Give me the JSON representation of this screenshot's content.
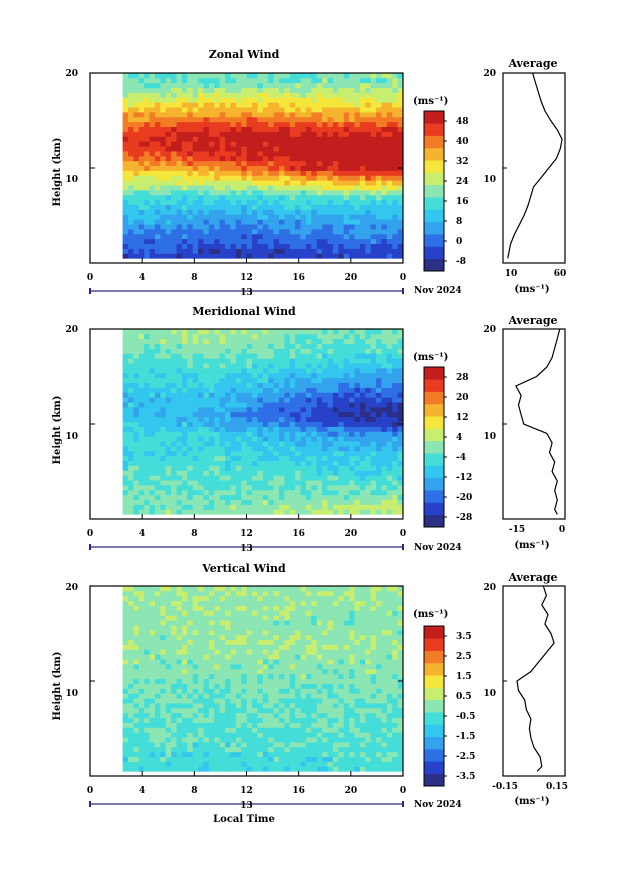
{
  "x_axis": {
    "label": "Local Time",
    "ticks": [
      "0",
      "4",
      "8",
      "12",
      "16",
      "20",
      "0"
    ],
    "date_marker": "13",
    "month_year": "Nov 2024",
    "range_hours": [
      0,
      24
    ]
  },
  "panels": [
    {
      "title": "Zonal Wind",
      "ylabel": "Height (km)",
      "yticks": [
        "20",
        "10"
      ],
      "colorbar_unit": "(ms⁻¹)",
      "colorbar_ticks": [
        "48",
        "40",
        "32",
        "24",
        "16",
        "8",
        "0",
        "-8"
      ],
      "colorbar_range": [
        -12,
        52
      ],
      "avg_title": "Average",
      "avg_xticks": [
        "10",
        "60"
      ],
      "avg_xunit": "(ms⁻¹)"
    },
    {
      "title": "Meridional Wind",
      "ylabel": "Height (km)",
      "yticks": [
        "20",
        "10"
      ],
      "colorbar_unit": "(ms⁻¹)",
      "colorbar_ticks": [
        "28",
        "20",
        "12",
        "4",
        "-4",
        "-12",
        "-20",
        "-28"
      ],
      "colorbar_range": [
        -32,
        32
      ],
      "avg_title": "Average",
      "avg_xticks": [
        "-15",
        "0"
      ],
      "avg_xunit": "(ms⁻¹)"
    },
    {
      "title": "Vertical Wind",
      "ylabel": "Height (km)",
      "yticks": [
        "20",
        "10"
      ],
      "colorbar_unit": "(ms⁻¹)",
      "colorbar_ticks": [
        "3.5",
        "2.5",
        "1.5",
        "0.5",
        "-0.5",
        "-1.5",
        "-2.5",
        "-3.5"
      ],
      "colorbar_range": [
        -4,
        4
      ],
      "avg_title": "Average",
      "avg_xticks": [
        "-0.15",
        "0.15"
      ],
      "avg_xunit": "(ms⁻¹)"
    }
  ],
  "chart_data": [
    {
      "type": "heatmap",
      "title": "Zonal Wind",
      "xlabel": "Local Time",
      "ylabel": "Height (km)",
      "xlim": [
        0,
        24
      ],
      "ylim": [
        0,
        20
      ],
      "data_start_hour": 2.5,
      "unit": "ms-1",
      "profile_height_km": [
        1,
        3,
        5,
        7,
        9,
        10,
        11,
        12,
        13,
        14,
        15,
        16,
        17,
        18,
        19
      ],
      "profile_by_hour": [
        {
          "hour": 3,
          "values": [
            -4,
            2,
            8,
            16,
            28,
            34,
            40,
            44,
            46,
            44,
            38,
            34,
            28,
            22,
            18
          ]
        },
        {
          "hour": 10,
          "values": [
            -6,
            0,
            6,
            14,
            30,
            38,
            44,
            48,
            50,
            48,
            42,
            36,
            30,
            24,
            18
          ]
        },
        {
          "hour": 20,
          "values": [
            -4,
            2,
            8,
            16,
            40,
            50,
            52,
            52,
            50,
            46,
            40,
            34,
            28,
            24,
            20
          ]
        }
      ],
      "average_profile": {
        "xlim": [
          0,
          65
        ],
        "height_km": [
          0.5,
          1,
          2,
          3,
          4,
          5,
          6,
          7,
          8,
          9,
          10,
          11,
          12,
          13,
          14,
          15,
          16,
          17,
          18,
          19,
          20
        ],
        "values": [
          5,
          6,
          8,
          12,
          17,
          22,
          26,
          29,
          32,
          40,
          48,
          56,
          60,
          62,
          57,
          50,
          44,
          40,
          37,
          34,
          31
        ]
      }
    },
    {
      "type": "heatmap",
      "title": "Meridional Wind",
      "xlabel": "Local Time",
      "ylabel": "Height (km)",
      "xlim": [
        0,
        24
      ],
      "ylim": [
        0,
        20
      ],
      "data_start_hour": 2.5,
      "unit": "ms-1",
      "profile_height_km": [
        1,
        3,
        5,
        7,
        9,
        10,
        11,
        12,
        13,
        14,
        15,
        16,
        17,
        18,
        19
      ],
      "profile_by_hour": [
        {
          "hour": 3,
          "values": [
            0,
            -2,
            -4,
            -6,
            -6,
            -8,
            -10,
            -10,
            -10,
            -8,
            -6,
            -6,
            -4,
            -2,
            0
          ]
        },
        {
          "hour": 10,
          "values": [
            0,
            -2,
            -4,
            -6,
            -8,
            -12,
            -14,
            -12,
            -10,
            -8,
            -6,
            -4,
            -2,
            0,
            2
          ]
        },
        {
          "hour": 20,
          "values": [
            4,
            -2,
            -6,
            -10,
            -16,
            -24,
            -28,
            -26,
            -22,
            -18,
            -14,
            -10,
            -6,
            -4,
            -2
          ]
        }
      ],
      "average_profile": {
        "xlim": [
          -22,
          2
        ],
        "height_km": [
          0.5,
          1,
          2,
          3,
          4,
          5,
          6,
          7,
          8,
          9,
          10,
          11,
          12,
          13,
          14,
          15,
          16,
          17,
          18,
          19,
          20
        ],
        "values": [
          -1,
          -2,
          -1,
          -2,
          -1,
          -3,
          -2,
          -4,
          -3,
          -5,
          -14,
          -15,
          -16,
          -15,
          -17,
          -9,
          -5,
          -3,
          -2,
          -1,
          0
        ]
      }
    },
    {
      "type": "heatmap",
      "title": "Vertical Wind",
      "xlabel": "Local Time",
      "ylabel": "Height (km)",
      "xlim": [
        0,
        24
      ],
      "ylim": [
        0,
        20
      ],
      "data_start_hour": 2.5,
      "unit": "ms-1",
      "profile_height_km": [
        1,
        3,
        5,
        7,
        9,
        10,
        11,
        12,
        13,
        14,
        15,
        16,
        17,
        18,
        19
      ],
      "profile_by_hour": [
        {
          "hour": 3,
          "values": [
            -0.6,
            -0.5,
            -0.4,
            -0.3,
            -0.2,
            -0.2,
            -0.1,
            0,
            0,
            0.1,
            0,
            0.1,
            0,
            0.1,
            0.2
          ]
        },
        {
          "hour": 10,
          "values": [
            -0.8,
            -0.6,
            -0.4,
            -0.3,
            -0.2,
            -0.1,
            0,
            0,
            0.1,
            0.2,
            0.1,
            0.1,
            0,
            0.1,
            0.2
          ]
        },
        {
          "hour": 20,
          "values": [
            -0.6,
            -0.5,
            -0.4,
            -0.3,
            -0.2,
            -0.1,
            0,
            0,
            0.1,
            0.1,
            0.1,
            0,
            0,
            0.1,
            0.1
          ]
        }
      ],
      "average_profile": {
        "xlim": [
          -0.2,
          0.2
        ],
        "height_km": [
          0.5,
          1,
          2,
          3,
          4,
          5,
          6,
          7,
          8,
          9,
          10,
          11,
          12,
          13,
          14,
          15,
          16,
          17,
          18,
          19,
          20
        ],
        "values": [
          0.02,
          0.05,
          0.04,
          0.0,
          -0.02,
          -0.03,
          -0.02,
          -0.05,
          -0.06,
          -0.1,
          -0.11,
          -0.02,
          0.03,
          0.08,
          0.13,
          0.11,
          0.07,
          0.09,
          0.05,
          0.08,
          0.06
        ]
      }
    }
  ]
}
